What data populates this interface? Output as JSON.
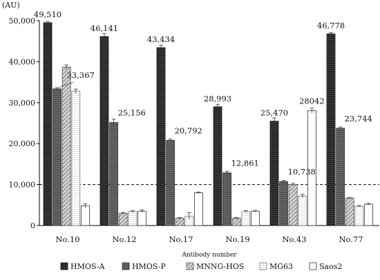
{
  "chart_data": {
    "type": "bar",
    "unit_label": "(AU)",
    "xlabel": "Antibody number",
    "ylim": [
      0,
      50000
    ],
    "yticks": [
      0,
      10000,
      20000,
      30000,
      40000,
      50000
    ],
    "ytick_labels": [
      "0",
      "10,000",
      "20,000",
      "30,000",
      "40,000",
      "50,000"
    ],
    "threshold": 10000,
    "categories": [
      "No.10",
      "No.12",
      "No.17",
      "No.19",
      "No.43",
      "No.77"
    ],
    "series": [
      {
        "name": "HMOS-A",
        "values": [
          49510,
          46141,
          43434,
          28993,
          25470,
          46778
        ],
        "errors": [
          300,
          700,
          600,
          600,
          800,
          300
        ]
      },
      {
        "name": "HMOS-P",
        "values": [
          33367,
          25156,
          20792,
          12861,
          10738,
          23744
        ],
        "errors": [
          300,
          800,
          300,
          400,
          300,
          300
        ]
      },
      {
        "name": "MNNG-HOS",
        "values": [
          38700,
          3000,
          1800,
          1800,
          10000,
          6700
        ],
        "errors": [
          500,
          200,
          150,
          150,
          300,
          150
        ]
      },
      {
        "name": "MG63",
        "values": [
          32800,
          3400,
          2300,
          3400,
          7200,
          4700
        ],
        "errors": [
          500,
          200,
          800,
          200,
          400,
          200
        ]
      },
      {
        "name": "Saos2",
        "values": [
          4800,
          3500,
          8000,
          3500,
          28042,
          5200
        ],
        "errors": [
          500,
          300,
          200,
          200,
          600,
          200
        ]
      }
    ],
    "data_labels": [
      {
        "series": 0,
        "category": 0,
        "text": "49,510"
      },
      {
        "series": 1,
        "category": 0,
        "text": "33,367"
      },
      {
        "series": 0,
        "category": 1,
        "text": "46,141"
      },
      {
        "series": 1,
        "category": 1,
        "text": "25,156"
      },
      {
        "series": 0,
        "category": 2,
        "text": "43,434"
      },
      {
        "series": 1,
        "category": 2,
        "text": "20,792"
      },
      {
        "series": 0,
        "category": 3,
        "text": "28,993"
      },
      {
        "series": 1,
        "category": 3,
        "text": "12,861"
      },
      {
        "series": 0,
        "category": 4,
        "text": "25,470"
      },
      {
        "series": 1,
        "category": 4,
        "text": "10,738"
      },
      {
        "series": 4,
        "category": 4,
        "text": "28042"
      },
      {
        "series": 0,
        "category": 5,
        "text": "46,778"
      },
      {
        "series": 1,
        "category": 5,
        "text": "23,744"
      }
    ],
    "legend_position": "bottom",
    "grid": false
  }
}
